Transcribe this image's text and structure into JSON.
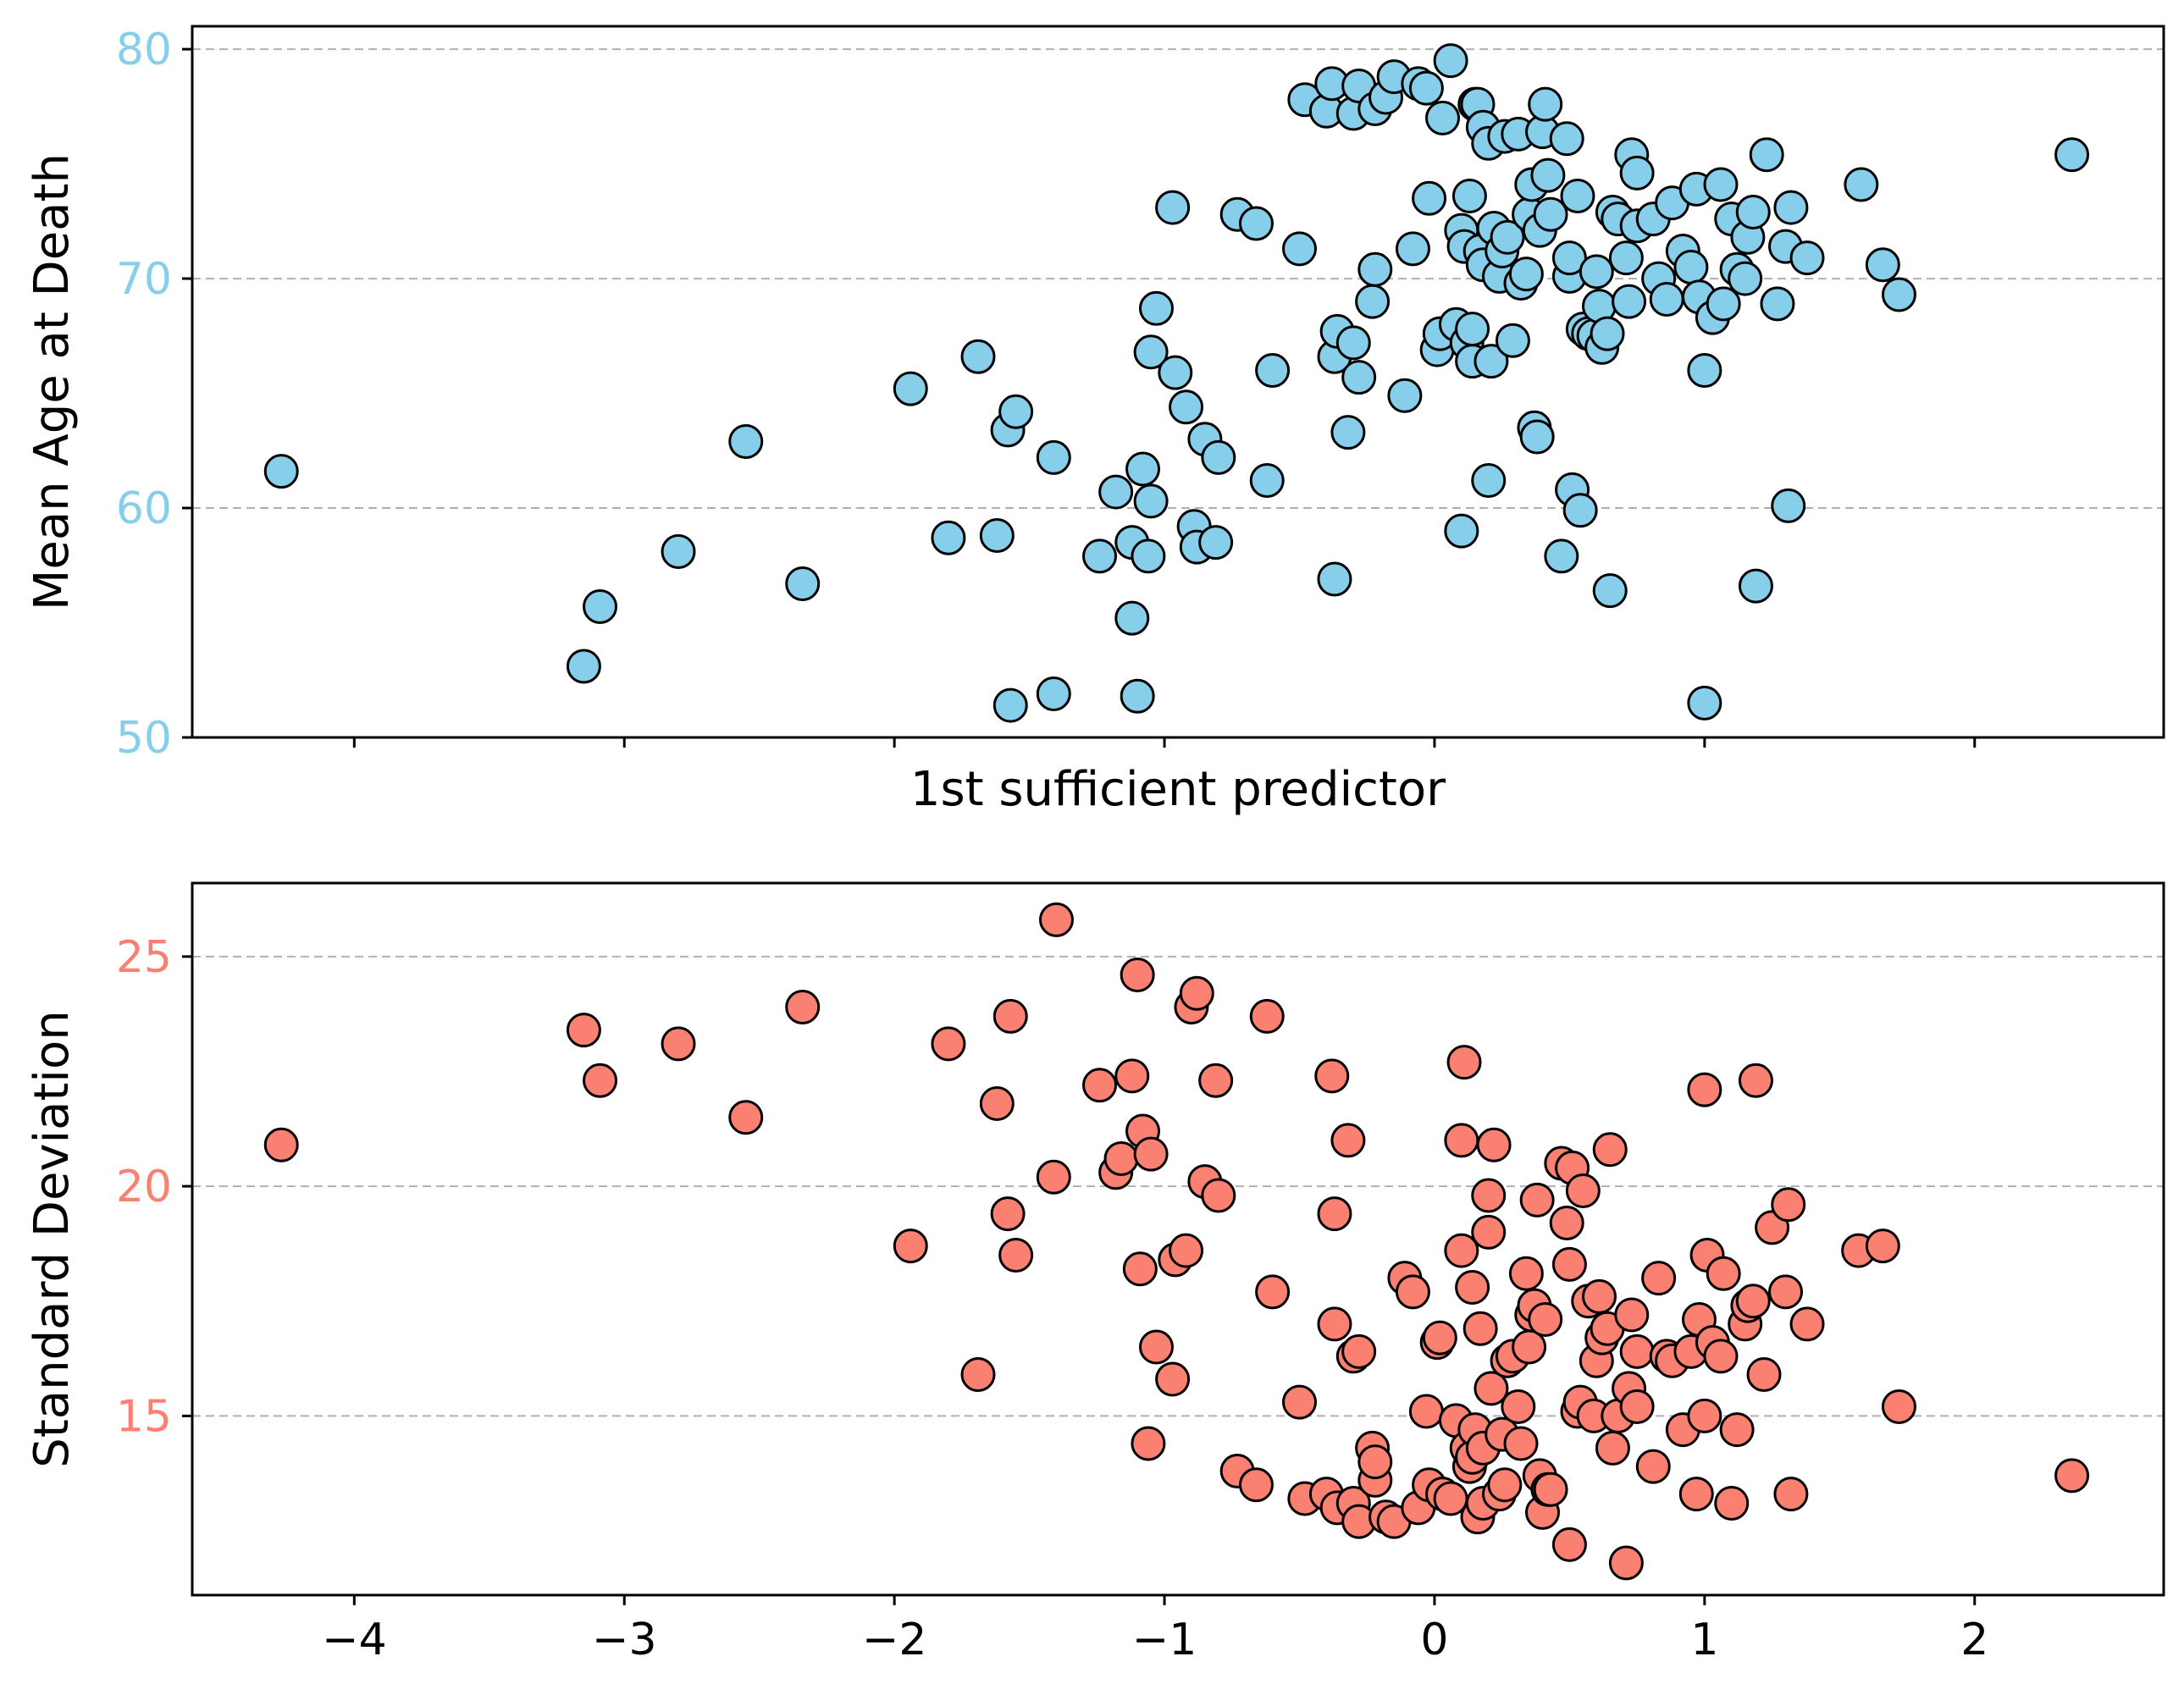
{
  "chart_data": [
    {
      "type": "scatter",
      "panel": "top",
      "xlabel": "1st sufficient predictor",
      "ylabel": "Mean Age at Death",
      "ylabel_color": "#87CEEB",
      "marker_color": "#87CEEB",
      "xlim": [
        -4.6,
        2.7
      ],
      "ylim": [
        50,
        81
      ],
      "yticks": [
        50,
        60,
        70,
        80
      ],
      "ytick_labels": [
        "50",
        "60",
        "70",
        "80"
      ],
      "ygrid": [
        60,
        70,
        80
      ],
      "xticks": [
        -4,
        -3,
        -2,
        -1,
        0,
        1,
        2
      ],
      "show_xtick_labels": false,
      "points": [
        [
          -4.27,
          61.6
        ],
        [
          -3.15,
          53.1
        ],
        [
          -3.09,
          55.7
        ],
        [
          -2.8,
          58.1
        ],
        [
          -2.55,
          62.9
        ],
        [
          -2.34,
          56.7
        ],
        [
          -1.94,
          65.2
        ],
        [
          -1.8,
          58.7
        ],
        [
          -1.69,
          66.6
        ],
        [
          -1.62,
          58.8
        ],
        [
          -1.58,
          63.4
        ],
        [
          -1.55,
          64.2
        ],
        [
          -1.57,
          51.4
        ],
        [
          -1.41,
          51.9
        ],
        [
          -1.41,
          62.2
        ],
        [
          -1.24,
          57.9
        ],
        [
          -1.18,
          60.7
        ],
        [
          -1.12,
          58.5
        ],
        [
          -1.12,
          55.2
        ],
        [
          -1.1,
          51.8
        ],
        [
          -1.08,
          61.7
        ],
        [
          -1.06,
          57.9
        ],
        [
          -1.05,
          60.3
        ],
        [
          -1.05,
          66.8
        ],
        [
          -1.03,
          68.7
        ],
        [
          -0.97,
          73.1
        ],
        [
          -0.96,
          65.9
        ],
        [
          -0.92,
          64.4
        ],
        [
          -0.89,
          59.2
        ],
        [
          -0.88,
          58.3
        ],
        [
          -0.85,
          63.0
        ],
        [
          -0.81,
          58.5
        ],
        [
          -0.8,
          62.2
        ],
        [
          -0.73,
          72.8
        ],
        [
          -0.66,
          72.4
        ],
        [
          -0.62,
          61.2
        ],
        [
          -0.6,
          66.0
        ],
        [
          -0.5,
          71.3
        ],
        [
          -0.48,
          77.8
        ],
        [
          -0.4,
          77.3
        ],
        [
          -0.38,
          78.5
        ],
        [
          -0.37,
          66.6
        ],
        [
          -0.37,
          56.9
        ],
        [
          -0.36,
          67.7
        ],
        [
          -0.32,
          63.3
        ],
        [
          -0.3,
          77.2
        ],
        [
          -0.3,
          67.2
        ],
        [
          -0.28,
          65.7
        ],
        [
          -0.28,
          78.4
        ],
        [
          -0.23,
          69.0
        ],
        [
          -0.22,
          70.4
        ],
        [
          -0.22,
          77.4
        ],
        [
          -0.18,
          77.9
        ],
        [
          -0.15,
          78.8
        ],
        [
          -0.11,
          64.9
        ],
        [
          -0.08,
          71.3
        ],
        [
          -0.06,
          78.5
        ],
        [
          -0.03,
          78.3
        ],
        [
          -0.02,
          73.5
        ],
        [
          0.01,
          66.9
        ],
        [
          0.02,
          67.6
        ],
        [
          0.03,
          77.0
        ],
        [
          0.06,
          79.5
        ],
        [
          0.08,
          68.0
        ],
        [
          0.1,
          59.0
        ],
        [
          0.1,
          72.1
        ],
        [
          0.11,
          71.4
        ],
        [
          0.12,
          67.2
        ],
        [
          0.13,
          73.6
        ],
        [
          0.14,
          66.4
        ],
        [
          0.14,
          67.8
        ],
        [
          0.15,
          77.6
        ],
        [
          0.16,
          77.6
        ],
        [
          0.17,
          71.2
        ],
        [
          0.18,
          70.6
        ],
        [
          0.18,
          76.6
        ],
        [
          0.2,
          61.2
        ],
        [
          0.2,
          75.9
        ],
        [
          0.21,
          66.4
        ],
        [
          0.22,
          72.2
        ],
        [
          0.24,
          70.1
        ],
        [
          0.25,
          71.2
        ],
        [
          0.26,
          76.2
        ],
        [
          0.27,
          71.8
        ],
        [
          0.29,
          67.3
        ],
        [
          0.31,
          76.3
        ],
        [
          0.32,
          69.8
        ],
        [
          0.34,
          70.2
        ],
        [
          0.35,
          72.8
        ],
        [
          0.36,
          74.1
        ],
        [
          0.37,
          63.5
        ],
        [
          0.38,
          63.1
        ],
        [
          0.39,
          72.1
        ],
        [
          0.4,
          76.4
        ],
        [
          0.41,
          77.6
        ],
        [
          0.42,
          74.5
        ],
        [
          0.43,
          72.8
        ],
        [
          0.47,
          57.9
        ],
        [
          0.49,
          76.1
        ],
        [
          0.5,
          70.1
        ],
        [
          0.5,
          70.9
        ],
        [
          0.51,
          60.8
        ],
        [
          0.53,
          73.6
        ],
        [
          0.54,
          59.9
        ],
        [
          0.55,
          67.8
        ],
        [
          0.57,
          67.6
        ],
        [
          0.59,
          67.5
        ],
        [
          0.6,
          70.3
        ],
        [
          0.61,
          68.8
        ],
        [
          0.62,
          67.0
        ],
        [
          0.64,
          67.6
        ],
        [
          0.65,
          56.4
        ],
        [
          0.66,
          72.9
        ],
        [
          0.68,
          72.6
        ],
        [
          0.71,
          70.9
        ],
        [
          0.72,
          69.0
        ],
        [
          0.73,
          75.4
        ],
        [
          0.75,
          74.6
        ],
        [
          0.75,
          72.3
        ],
        [
          0.81,
          72.6
        ],
        [
          0.83,
          70.0
        ],
        [
          0.86,
          69.1
        ],
        [
          0.88,
          73.3
        ],
        [
          0.92,
          71.2
        ],
        [
          0.95,
          70.5
        ],
        [
          0.97,
          73.9
        ],
        [
          0.98,
          69.2
        ],
        [
          1.0,
          66.0
        ],
        [
          1.0,
          51.5
        ],
        [
          1.03,
          68.3
        ],
        [
          1.06,
          74.1
        ],
        [
          1.07,
          68.9
        ],
        [
          1.1,
          72.6
        ],
        [
          1.12,
          70.4
        ],
        [
          1.15,
          70.0
        ],
        [
          1.16,
          71.8
        ],
        [
          1.18,
          72.9
        ],
        [
          1.19,
          56.6
        ],
        [
          1.23,
          75.4
        ],
        [
          1.27,
          68.9
        ],
        [
          1.3,
          71.4
        ],
        [
          1.31,
          60.1
        ],
        [
          1.32,
          73.1
        ],
        [
          1.38,
          70.9
        ],
        [
          1.58,
          74.1
        ],
        [
          1.66,
          70.6
        ],
        [
          1.72,
          69.3
        ],
        [
          2.36,
          75.4
        ]
      ]
    },
    {
      "type": "scatter",
      "panel": "bottom",
      "xlabel": "",
      "ylabel": "Standard Deviation",
      "ylabel_color": "#FA8072",
      "marker_color": "#FA8072",
      "xlim": [
        -4.6,
        2.7
      ],
      "ylim": [
        11.1,
        26.6
      ],
      "yticks": [
        15,
        20,
        25
      ],
      "ytick_labels": [
        "15",
        "20",
        "25"
      ],
      "ygrid": [
        15,
        20,
        25
      ],
      "xticks": [
        -4,
        -3,
        -2,
        -1,
        0,
        1,
        2
      ],
      "xtick_labels": [
        "−4",
        "−3",
        "−2",
        "−1",
        "0",
        "1",
        "2"
      ],
      "show_xtick_labels": true,
      "points": [
        [
          -4.27,
          20.9
        ],
        [
          -3.15,
          23.4
        ],
        [
          -3.09,
          22.3
        ],
        [
          -2.8,
          23.1
        ],
        [
          -2.55,
          21.5
        ],
        [
          -2.34,
          23.9
        ],
        [
          -1.94,
          18.7
        ],
        [
          -1.8,
          23.1
        ],
        [
          -1.69,
          15.9
        ],
        [
          -1.62,
          21.8
        ],
        [
          -1.58,
          19.4
        ],
        [
          -1.57,
          23.7
        ],
        [
          -1.55,
          18.5
        ],
        [
          -1.41,
          20.2
        ],
        [
          -1.4,
          25.8
        ],
        [
          -1.24,
          22.2
        ],
        [
          -1.18,
          20.3
        ],
        [
          -1.16,
          20.6
        ],
        [
          -1.12,
          22.4
        ],
        [
          -1.1,
          24.6
        ],
        [
          -1.09,
          18.2
        ],
        [
          -1.08,
          21.2
        ],
        [
          -1.06,
          14.4
        ],
        [
          -1.05,
          20.7
        ],
        [
          -1.03,
          16.5
        ],
        [
          -0.97,
          15.8
        ],
        [
          -0.96,
          18.4
        ],
        [
          -0.92,
          18.6
        ],
        [
          -0.9,
          23.9
        ],
        [
          -0.88,
          24.2
        ],
        [
          -0.85,
          20.1
        ],
        [
          -0.81,
          22.3
        ],
        [
          -0.8,
          19.8
        ],
        [
          -0.73,
          13.8
        ],
        [
          -0.66,
          13.5
        ],
        [
          -0.62,
          23.7
        ],
        [
          -0.6,
          17.7
        ],
        [
          -0.5,
          15.3
        ],
        [
          -0.48,
          13.2
        ],
        [
          -0.4,
          13.3
        ],
        [
          -0.38,
          22.4
        ],
        [
          -0.37,
          19.4
        ],
        [
          -0.37,
          17.0
        ],
        [
          -0.36,
          13.0
        ],
        [
          -0.32,
          21.0
        ],
        [
          -0.3,
          16.3
        ],
        [
          -0.3,
          13.1
        ],
        [
          -0.28,
          16.4
        ],
        [
          -0.28,
          12.7
        ],
        [
          -0.23,
          14.3
        ],
        [
          -0.22,
          13.6
        ],
        [
          -0.22,
          14.0
        ],
        [
          -0.18,
          12.8
        ],
        [
          -0.15,
          12.7
        ],
        [
          -0.11,
          18.0
        ],
        [
          -0.08,
          17.7
        ],
        [
          -0.06,
          13.0
        ],
        [
          -0.03,
          15.1
        ],
        [
          -0.02,
          13.5
        ],
        [
          0.01,
          16.6
        ],
        [
          0.02,
          16.7
        ],
        [
          0.03,
          13.3
        ],
        [
          0.06,
          13.2
        ],
        [
          0.08,
          14.9
        ],
        [
          0.1,
          18.6
        ],
        [
          0.1,
          21.0
        ],
        [
          0.11,
          22.7
        ],
        [
          0.12,
          14.3
        ],
        [
          0.13,
          13.9
        ],
        [
          0.14,
          17.8
        ],
        [
          0.14,
          14.1
        ],
        [
          0.15,
          14.7
        ],
        [
          0.16,
          12.8
        ],
        [
          0.17,
          16.9
        ],
        [
          0.18,
          14.3
        ],
        [
          0.18,
          13.1
        ],
        [
          0.2,
          19.0
        ],
        [
          0.2,
          19.8
        ],
        [
          0.21,
          15.6
        ],
        [
          0.22,
          20.9
        ],
        [
          0.24,
          13.3
        ],
        [
          0.25,
          14.6
        ],
        [
          0.26,
          13.5
        ],
        [
          0.27,
          16.2
        ],
        [
          0.29,
          16.3
        ],
        [
          0.31,
          15.2
        ],
        [
          0.32,
          14.4
        ],
        [
          0.34,
          18.1
        ],
        [
          0.35,
          16.5
        ],
        [
          0.36,
          17.2
        ],
        [
          0.37,
          17.4
        ],
        [
          0.38,
          19.7
        ],
        [
          0.39,
          13.7
        ],
        [
          0.4,
          12.9
        ],
        [
          0.41,
          17.1
        ],
        [
          0.42,
          13.4
        ],
        [
          0.43,
          13.4
        ],
        [
          0.47,
          20.5
        ],
        [
          0.49,
          19.2
        ],
        [
          0.5,
          18.3
        ],
        [
          0.5,
          12.2
        ],
        [
          0.51,
          20.4
        ],
        [
          0.53,
          15.1
        ],
        [
          0.54,
          15.3
        ],
        [
          0.55,
          19.9
        ],
        [
          0.57,
          17.5
        ],
        [
          0.59,
          15.0
        ],
        [
          0.6,
          16.2
        ],
        [
          0.61,
          17.6
        ],
        [
          0.62,
          16.7
        ],
        [
          0.64,
          16.9
        ],
        [
          0.65,
          20.8
        ],
        [
          0.66,
          14.3
        ],
        [
          0.68,
          15.0
        ],
        [
          0.71,
          11.8
        ],
        [
          0.72,
          15.6
        ],
        [
          0.73,
          17.2
        ],
        [
          0.75,
          16.4
        ],
        [
          0.75,
          15.2
        ],
        [
          0.81,
          13.9
        ],
        [
          0.83,
          18.0
        ],
        [
          0.86,
          16.3
        ],
        [
          0.88,
          16.2
        ],
        [
          0.92,
          14.7
        ],
        [
          0.95,
          16.4
        ],
        [
          0.97,
          13.3
        ],
        [
          0.98,
          17.1
        ],
        [
          1.0,
          22.1
        ],
        [
          1.0,
          15.0
        ],
        [
          1.01,
          18.5
        ],
        [
          1.03,
          16.6
        ],
        [
          1.06,
          16.3
        ],
        [
          1.07,
          18.1
        ],
        [
          1.1,
          13.1
        ],
        [
          1.12,
          14.7
        ],
        [
          1.15,
          17.0
        ],
        [
          1.16,
          17.4
        ],
        [
          1.18,
          17.5
        ],
        [
          1.19,
          22.3
        ],
        [
          1.22,
          15.9
        ],
        [
          1.25,
          19.1
        ],
        [
          1.3,
          17.7
        ],
        [
          1.31,
          19.6
        ],
        [
          1.32,
          13.3
        ],
        [
          1.38,
          17.0
        ],
        [
          1.57,
          18.6
        ],
        [
          1.66,
          18.7
        ],
        [
          1.72,
          15.2
        ],
        [
          2.36,
          13.7
        ]
      ]
    }
  ]
}
